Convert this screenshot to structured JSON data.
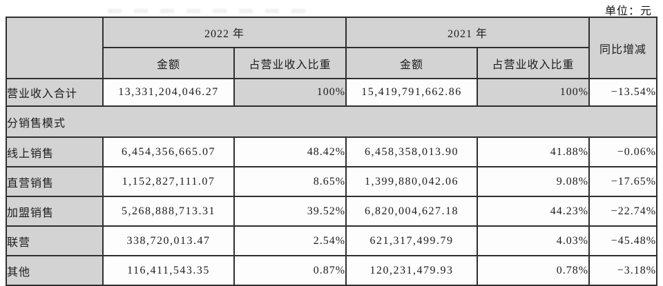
{
  "unit_label": "单位：元",
  "palette": {
    "header_fill": "#d3d3d3",
    "cell_fill": "#fdfdfd",
    "border": "#2e2e2e",
    "text": "#1c1c1c"
  },
  "table": {
    "header": {
      "year_2022": "2022 年",
      "year_2021": "2021 年",
      "amount_label": "金额",
      "share_label": "占营业收入比重",
      "yoy_label": "同比增减"
    },
    "section_label": "分销售模式",
    "rows": [
      {
        "label": "营业收入合计",
        "amt2022": "13,331,204,046.27",
        "pct2022": "100%",
        "amt2021": "15,419,791,662.86",
        "pct2021": "100%",
        "yoy": "−13.54%"
      },
      {
        "label": "线上销售",
        "amt2022": "6,454,356,665.07",
        "pct2022": "48.42%",
        "amt2021": "6,458,358,013.90",
        "pct2021": "41.88%",
        "yoy": "−0.06%"
      },
      {
        "label": "直营销售",
        "amt2022": "1,152,827,111.07",
        "pct2022": "8.65%",
        "amt2021": "1,399,880,042.06",
        "pct2021": "9.08%",
        "yoy": "−17.65%"
      },
      {
        "label": "加盟销售",
        "amt2022": "5,268,888,713.31",
        "pct2022": "39.52%",
        "amt2021": "6,820,004,627.18",
        "pct2021": "44.23%",
        "yoy": "−22.74%"
      },
      {
        "label": "联营",
        "amt2022": "338,720,013.47",
        "pct2022": "2.54%",
        "amt2021": "621,317,499.79",
        "pct2021": "4.03%",
        "yoy": "−45.48%"
      },
      {
        "label": "其他",
        "amt2022": "116,411,543.35",
        "pct2022": "0.87%",
        "amt2021": "120,231,479.93",
        "pct2021": "0.78%",
        "yoy": "−3.18%"
      }
    ]
  }
}
